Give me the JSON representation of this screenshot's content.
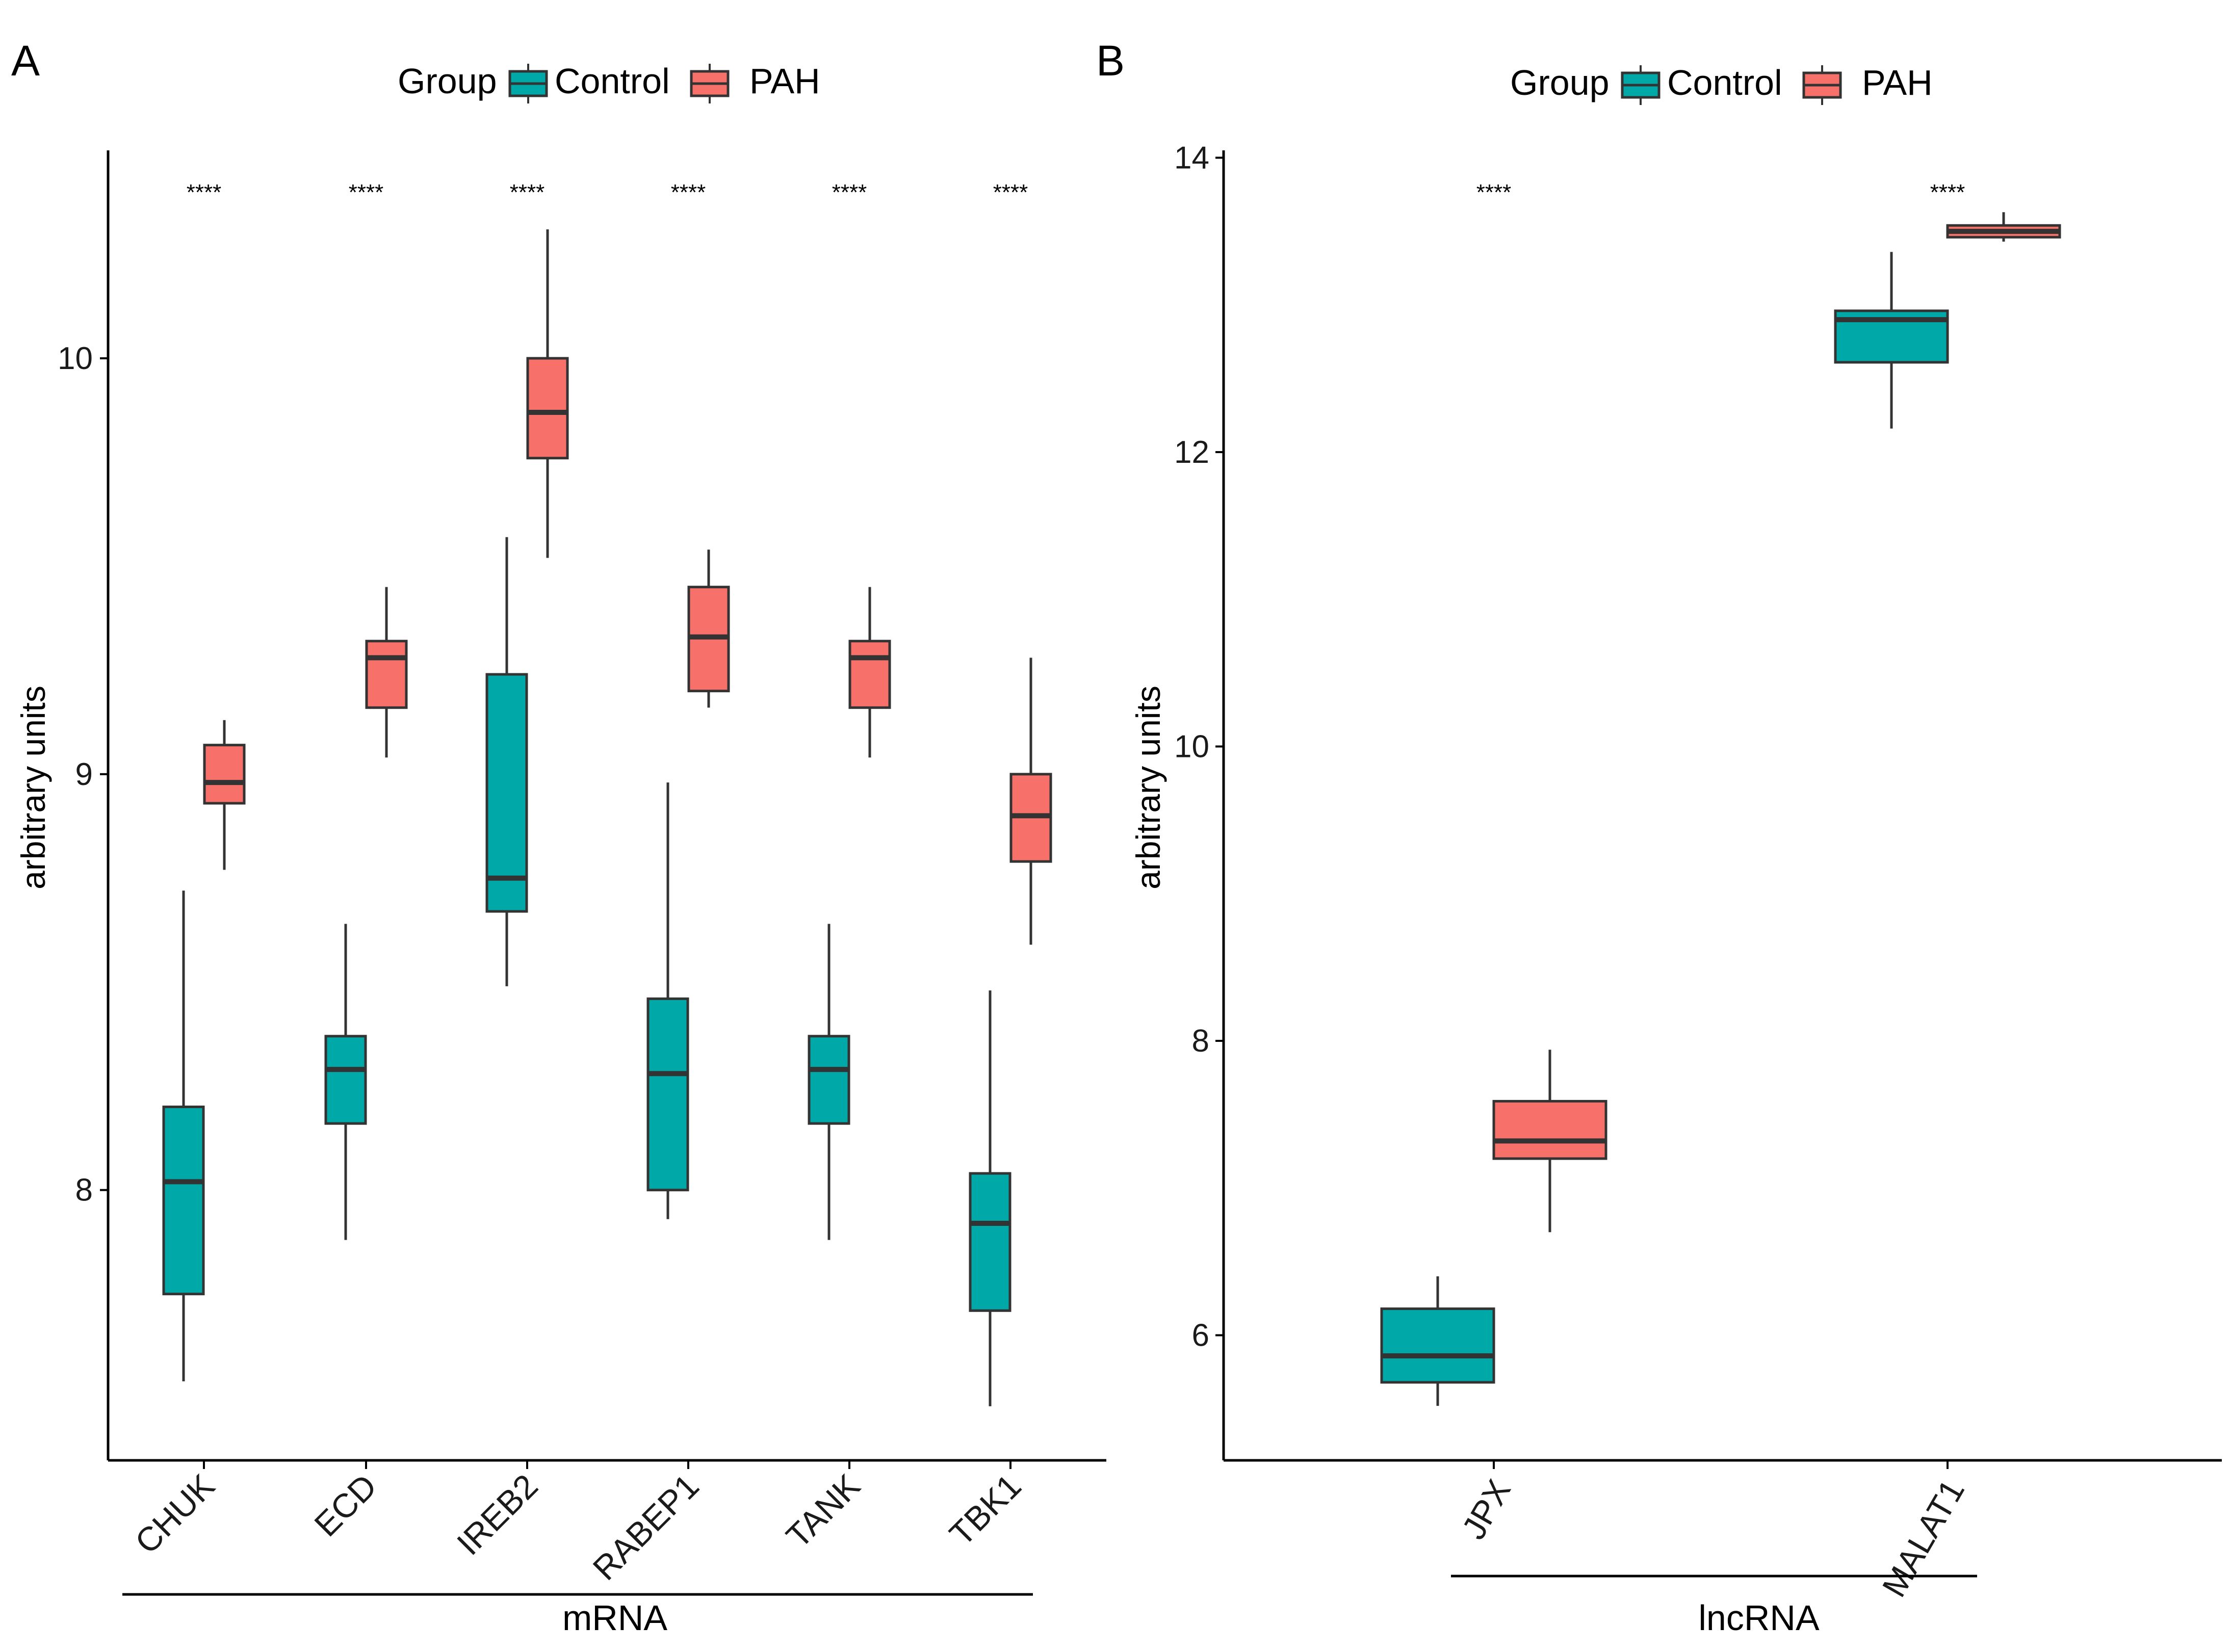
{
  "colors": {
    "Control": "#00A9A8",
    "PAH": "#F8706A",
    "axis": "#000000",
    "box_stroke": "#333333"
  },
  "chart_data": [
    {
      "type": "boxplot",
      "panel_label": "A",
      "legend": {
        "title": "Group",
        "entries": [
          "Control",
          "PAH"
        ],
        "position": "top"
      },
      "ylabel": "arbitrary units",
      "xlabel_group": "mRNA",
      "ylim": [
        7.35,
        10.5
      ],
      "yticks": [
        8,
        9,
        10
      ],
      "ytick_labels": [
        "8",
        "9",
        "10"
      ],
      "categories": [
        "CHUK",
        "ECD",
        "IREB2",
        "RABEP1",
        "TANK",
        "TBK1"
      ],
      "significance": [
        "****",
        "****",
        "****",
        "****",
        "****",
        "****"
      ],
      "series": [
        {
          "name": "Control",
          "boxes": [
            {
              "whisker_low": 7.54,
              "q1": 7.75,
              "median": 8.02,
              "q3": 8.2,
              "whisker_high": 8.72
            },
            {
              "whisker_low": 7.88,
              "q1": 8.16,
              "median": 8.29,
              "q3": 8.37,
              "whisker_high": 8.64
            },
            {
              "whisker_low": 8.49,
              "q1": 8.67,
              "median": 8.75,
              "q3": 9.24,
              "whisker_high": 9.57
            },
            {
              "whisker_low": 7.93,
              "q1": 8.0,
              "median": 8.28,
              "q3": 8.46,
              "whisker_high": 8.98
            },
            {
              "whisker_low": 7.88,
              "q1": 8.16,
              "median": 8.29,
              "q3": 8.37,
              "whisker_high": 8.64
            },
            {
              "whisker_low": 7.48,
              "q1": 7.71,
              "median": 7.92,
              "q3": 8.04,
              "whisker_high": 8.48
            }
          ]
        },
        {
          "name": "PAH",
          "boxes": [
            {
              "whisker_low": 8.77,
              "q1": 8.93,
              "median": 8.98,
              "q3": 9.07,
              "whisker_high": 9.13
            },
            {
              "whisker_low": 9.04,
              "q1": 9.16,
              "median": 9.28,
              "q3": 9.32,
              "whisker_high": 9.45
            },
            {
              "whisker_low": 9.52,
              "q1": 9.76,
              "median": 9.87,
              "q3": 10.0,
              "whisker_high": 10.31
            },
            {
              "whisker_low": 9.16,
              "q1": 9.2,
              "median": 9.33,
              "q3": 9.45,
              "whisker_high": 9.54
            },
            {
              "whisker_low": 9.04,
              "q1": 9.16,
              "median": 9.28,
              "q3": 9.32,
              "whisker_high": 9.45
            },
            {
              "whisker_low": 8.59,
              "q1": 8.79,
              "median": 8.9,
              "q3": 9.0,
              "whisker_high": 9.28
            }
          ]
        }
      ]
    },
    {
      "type": "boxplot",
      "panel_label": "B",
      "legend": {
        "title": "Group",
        "entries": [
          "Control",
          "PAH"
        ],
        "position": "top"
      },
      "ylabel": "arbitrary units",
      "xlabel_group": "lncRNA",
      "ylim": [
        5.15,
        14.05
      ],
      "yticks": [
        6,
        8,
        10,
        12,
        14
      ],
      "ytick_labels": [
        "6",
        "8",
        "10",
        "12",
        "14"
      ],
      "categories": [
        "JPX",
        "MALAT1"
      ],
      "significance": [
        "****",
        "****"
      ],
      "series": [
        {
          "name": "Control",
          "boxes": [
            {
              "whisker_low": 5.52,
              "q1": 5.68,
              "median": 5.86,
              "q3": 6.18,
              "whisker_high": 6.4
            },
            {
              "whisker_low": 12.16,
              "q1": 12.61,
              "median": 12.9,
              "q3": 12.96,
              "whisker_high": 13.36
            }
          ]
        },
        {
          "name": "PAH",
          "boxes": [
            {
              "whisker_low": 6.7,
              "q1": 7.2,
              "median": 7.32,
              "q3": 7.59,
              "whisker_high": 7.94
            },
            {
              "whisker_low": 13.43,
              "q1": 13.46,
              "median": 13.5,
              "q3": 13.54,
              "whisker_high": 13.63
            }
          ]
        }
      ]
    }
  ]
}
